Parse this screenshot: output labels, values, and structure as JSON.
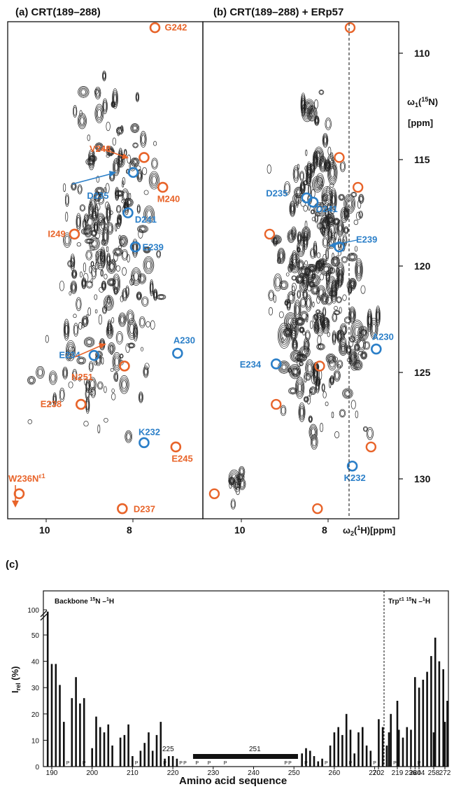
{
  "panel_a": {
    "title": "(a) CRT(189–288)",
    "xticks": [
      "10",
      "8"
    ],
    "assignments": [
      {
        "label": "G242",
        "color": "#e8642a",
        "x": 7.5,
        "y": 108.8
      },
      {
        "label": "V248",
        "color": "#e8642a",
        "x": 7.75,
        "y": 114.9
      },
      {
        "label": "D235",
        "color": "#2b7fc8",
        "x": 8.0,
        "y": 115.6
      },
      {
        "label": "M240",
        "color": "#e8642a",
        "x": 7.32,
        "y": 116.3
      },
      {
        "label": "D241",
        "color": "#2b7fc8",
        "x": 8.12,
        "y": 117.5
      },
      {
        "label": "I249",
        "color": "#e8642a",
        "x": 9.35,
        "y": 118.5
      },
      {
        "label": "E239",
        "color": "#2b7fc8",
        "x": 7.95,
        "y": 119.1
      },
      {
        "label": "A230",
        "color": "#2b7fc8",
        "x": 6.98,
        "y": 124.1
      },
      {
        "label": "E234",
        "color": "#2b7fc8",
        "x": 8.9,
        "y": 124.2
      },
      {
        "label": "N251",
        "color": "#e8642a",
        "x": 8.2,
        "y": 124.7
      },
      {
        "label": "E238",
        "color": "#e8642a",
        "x": 9.2,
        "y": 126.5
      },
      {
        "label": "K232",
        "color": "#2b7fc8",
        "x": 7.75,
        "y": 128.3
      },
      {
        "label": "E245",
        "color": "#e8642a",
        "x": 7.02,
        "y": 128.5
      },
      {
        "label": "W236Nε1",
        "color": "#e8642a",
        "x": 10.62,
        "y": 130.7
      },
      {
        "label": "D237",
        "color": "#e8642a",
        "x": 8.25,
        "y": 131.4
      }
    ]
  },
  "panel_b": {
    "title": "(b) CRT(189–288) + ERp57",
    "xticks": [
      "10",
      "8"
    ],
    "xlabel": "ω2(1H)[ppm]",
    "yticks": [
      "110",
      "115",
      "120",
      "125",
      "130"
    ],
    "ylabel_line1": "ω1(15N)",
    "ylabel_line2": "[ppm]",
    "assignments": [
      {
        "label": "D235",
        "color": "#2b7fc8",
        "x": 8.5,
        "y": 116.8
      },
      {
        "label": "D241",
        "color": "#2b7fc8",
        "x": 8.35,
        "y": 117.0
      },
      {
        "label": "E239",
        "color": "#2b7fc8",
        "x": 7.75,
        "y": 119.1
      },
      {
        "label": "A230",
        "color": "#2b7fc8",
        "x": 6.9,
        "y": 123.9
      },
      {
        "label": "E234",
        "color": "#2b7fc8",
        "x": 9.2,
        "y": 124.6
      },
      {
        "label": "K232",
        "color": "#2b7fc8",
        "x": 7.45,
        "y": 129.4
      }
    ],
    "lost_peaks": [
      {
        "x": 7.5,
        "y": 108.8
      },
      {
        "x": 7.75,
        "y": 114.9
      },
      {
        "x": 7.32,
        "y": 116.3
      },
      {
        "x": 9.35,
        "y": 118.5
      },
      {
        "x": 8.2,
        "y": 124.7
      },
      {
        "x": 9.2,
        "y": 126.5
      },
      {
        "x": 7.02,
        "y": 128.5
      },
      {
        "x": 10.62,
        "y": 130.7
      },
      {
        "x": 8.25,
        "y": 131.4
      }
    ]
  },
  "panel_c": {
    "title": "(c)",
    "xlabel": "Amino acid sequence",
    "ylabel_main": "I",
    "ylabel_sub": "rel",
    "ylabel_unit": "(%)",
    "backbone_label": "Backbone ¹⁵N–¹H",
    "trp_label": "Trpε1 ¹⁵N–¹H",
    "domain_start": "225",
    "domain_end": "251",
    "xticks": [
      "190",
      "200",
      "210",
      "220",
      "230",
      "240",
      "250",
      "260",
      "270",
      "280",
      "202",
      "219",
      "236",
      "244",
      "258",
      "272"
    ],
    "yticks": [
      "0",
      "10",
      "20",
      "30",
      "40",
      "50",
      "100"
    ],
    "p_marks": [
      "P",
      "P",
      "P",
      "P",
      "P",
      "P",
      "P",
      "P",
      "P",
      "P",
      "P",
      "P",
      "P",
      "P",
      "P",
      "P",
      "P"
    ]
  },
  "chart_data": {
    "type": "bar",
    "xlabel": "Amino acid sequence",
    "ylabel": "Irel (%)",
    "ylim": [
      0,
      100
    ],
    "backbone": {
      "x": [
        189,
        190,
        191,
        192,
        193,
        195,
        196,
        197,
        198,
        200,
        201,
        202,
        203,
        204,
        205,
        207,
        208,
        209,
        210,
        212,
        213,
        214,
        215,
        216,
        217,
        218,
        219,
        220,
        221,
        252,
        253,
        254,
        255,
        256,
        257,
        259,
        260,
        261,
        262,
        263,
        264,
        265,
        266,
        267,
        268,
        269,
        271,
        272,
        273,
        274,
        276,
        277,
        278,
        279,
        280,
        281,
        282,
        283,
        284,
        285,
        286,
        287,
        288
      ],
      "y": [
        55,
        39,
        39,
        31,
        17,
        26,
        34,
        24,
        26,
        7,
        19,
        15,
        13,
        16,
        8,
        11,
        12,
        16,
        4,
        6,
        9,
        13,
        6,
        12,
        17,
        3,
        4,
        4,
        3,
        5,
        7,
        6,
        4,
        2,
        3,
        8,
        13,
        15,
        12,
        20,
        14,
        5,
        13,
        15,
        8,
        6,
        18,
        15,
        8,
        20,
        14,
        11,
        15,
        14,
        34,
        30,
        33,
        36,
        42,
        49,
        40,
        37,
        25
      ]
    },
    "trp": {
      "x": [
        "202",
        "219",
        "236",
        "244",
        "258",
        "272"
      ],
      "y": [
        13,
        25,
        0,
        2,
        13,
        17
      ]
    },
    "ordered_region": [
      225,
      251
    ]
  }
}
